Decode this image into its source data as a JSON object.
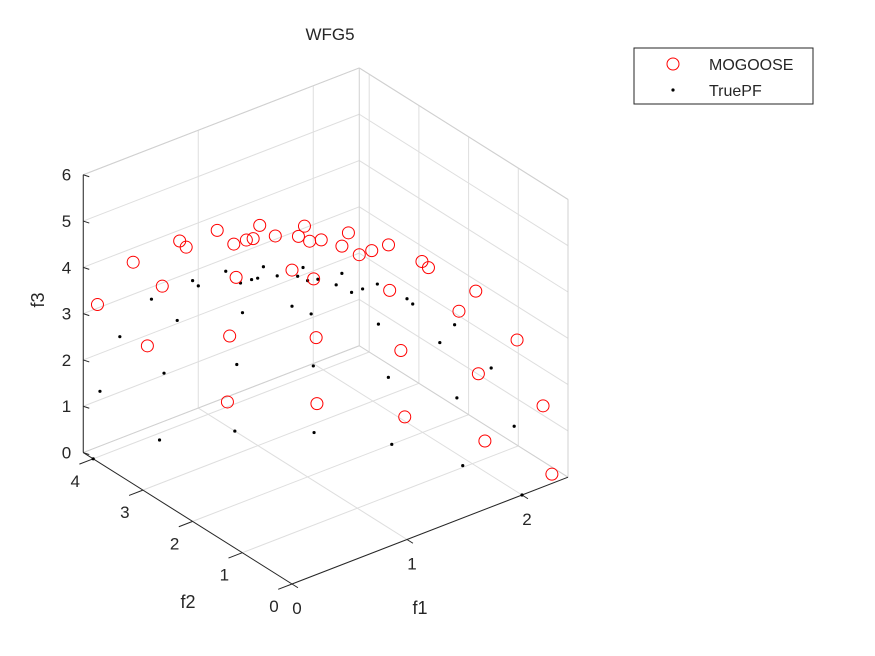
{
  "chart_data": {
    "type": "scatter",
    "title": "WFG5",
    "xlabel": "f1",
    "ylabel": "f2",
    "zlabel": "f3",
    "xlim": [
      0,
      2.4
    ],
    "ylim": [
      0,
      4.2
    ],
    "zlim": [
      0,
      6
    ],
    "x_ticks": [
      "0",
      "1",
      "2"
    ],
    "y_ticks": [
      "0",
      "1",
      "2",
      "3",
      "4"
    ],
    "z_ticks": [
      "0",
      "1",
      "2",
      "3",
      "4",
      "5",
      "6"
    ],
    "grid": true,
    "legend_position": "top-right",
    "colors": {
      "MOGOOSE": "#ff0000",
      "TruePF": "#000000"
    },
    "series": [
      {
        "name": "MOGOOSE",
        "marker": "circle",
        "points": [
          [
            0,
            0,
            6.78
          ],
          [
            0.585,
            0,
            6.55
          ],
          [
            0.565,
            0.303,
            6.55
          ],
          [
            0.507,
            0.585,
            6.55
          ],
          [
            0.414,
            0.828,
            6.55
          ],
          [
            0.293,
            1.014,
            6.55
          ],
          [
            0.151,
            1.131,
            6.55
          ],
          [
            0,
            1.171,
            6.55
          ],
          [
            1.13,
            0,
            5.88
          ],
          [
            1.092,
            0.585,
            5.88
          ],
          [
            0.979,
            1.13,
            5.88
          ],
          [
            0.799,
            1.598,
            5.88
          ],
          [
            0.565,
            1.957,
            5.88
          ],
          [
            0.293,
            2.183,
            5.88
          ],
          [
            0,
            2.26,
            5.88
          ],
          [
            1.598,
            0,
            4.79
          ],
          [
            1.544,
            0.827,
            4.79
          ],
          [
            1.384,
            1.598,
            4.79
          ],
          [
            1.13,
            2.26,
            4.79
          ],
          [
            0.799,
            2.767,
            4.79
          ],
          [
            0.414,
            3.087,
            4.79
          ],
          [
            0,
            3.196,
            4.79
          ],
          [
            1.957,
            0,
            3.39
          ],
          [
            1.89,
            1.014,
            3.39
          ],
          [
            1.695,
            1.957,
            3.39
          ],
          [
            1.384,
            2.767,
            3.39
          ],
          [
            0.979,
            3.39,
            3.39
          ],
          [
            0.506,
            3.781,
            3.39
          ],
          [
            0,
            3.914,
            3.39
          ],
          [
            2.183,
            0,
            1.75
          ],
          [
            2.109,
            1.13,
            1.75
          ],
          [
            1.89,
            2.183,
            1.75
          ],
          [
            1.544,
            3.087,
            1.75
          ],
          [
            1.092,
            3.781,
            1.75
          ],
          [
            0.565,
            4.217,
            1.75
          ],
          [
            2.26,
            0,
            0.2
          ],
          [
            2.183,
            1.17,
            0.2
          ],
          [
            1.957,
            2.26,
            0.2
          ],
          [
            1.598,
            3.196,
            0.2
          ],
          [
            1.13,
            3.914,
            0.2
          ]
        ]
      },
      {
        "name": "TruePF",
        "marker": "dot",
        "points": [
          [
            0,
            0,
            6
          ],
          [
            0.518,
            0,
            5.8
          ],
          [
            0.5,
            0.268,
            5.8
          ],
          [
            0.449,
            0.518,
            5.8
          ],
          [
            0.366,
            0.733,
            5.8
          ],
          [
            0.259,
            0.897,
            5.8
          ],
          [
            0.134,
            1.001,
            5.8
          ],
          [
            0,
            1.036,
            5.8
          ],
          [
            1,
            0,
            5.2
          ],
          [
            0.966,
            0.518,
            5.2
          ],
          [
            0.866,
            1,
            5.2
          ],
          [
            0.707,
            1.414,
            5.2
          ],
          [
            0.5,
            1.732,
            5.2
          ],
          [
            0.259,
            1.932,
            5.2
          ],
          [
            0,
            2,
            5.2
          ],
          [
            1.414,
            0,
            4.24
          ],
          [
            1.366,
            0.732,
            4.24
          ],
          [
            1.225,
            1.414,
            4.24
          ],
          [
            1,
            2,
            4.24
          ],
          [
            0.707,
            2.449,
            4.24
          ],
          [
            0.366,
            2.732,
            4.24
          ],
          [
            0,
            2.828,
            4.24
          ],
          [
            1.732,
            0,
            3
          ],
          [
            1.673,
            0.897,
            3
          ],
          [
            1.5,
            1.732,
            3
          ],
          [
            1.225,
            2.449,
            3
          ],
          [
            0.866,
            3,
            3
          ],
          [
            0.448,
            3.346,
            3
          ],
          [
            0,
            3.464,
            3
          ],
          [
            1.932,
            0,
            1.55
          ],
          [
            1.866,
            1,
            1.55
          ],
          [
            1.673,
            1.932,
            1.55
          ],
          [
            1.366,
            2.732,
            1.55
          ],
          [
            0.966,
            3.346,
            1.55
          ],
          [
            0.5,
            3.732,
            1.55
          ],
          [
            0,
            3.864,
            1.55
          ],
          [
            2,
            0,
            0
          ],
          [
            1.932,
            1.035,
            0
          ],
          [
            1.732,
            2,
            0
          ],
          [
            1.414,
            2.828,
            0
          ],
          [
            1,
            3.464,
            0
          ],
          [
            0.518,
            3.864,
            0
          ],
          [
            0,
            4,
            0
          ]
        ]
      }
    ]
  }
}
